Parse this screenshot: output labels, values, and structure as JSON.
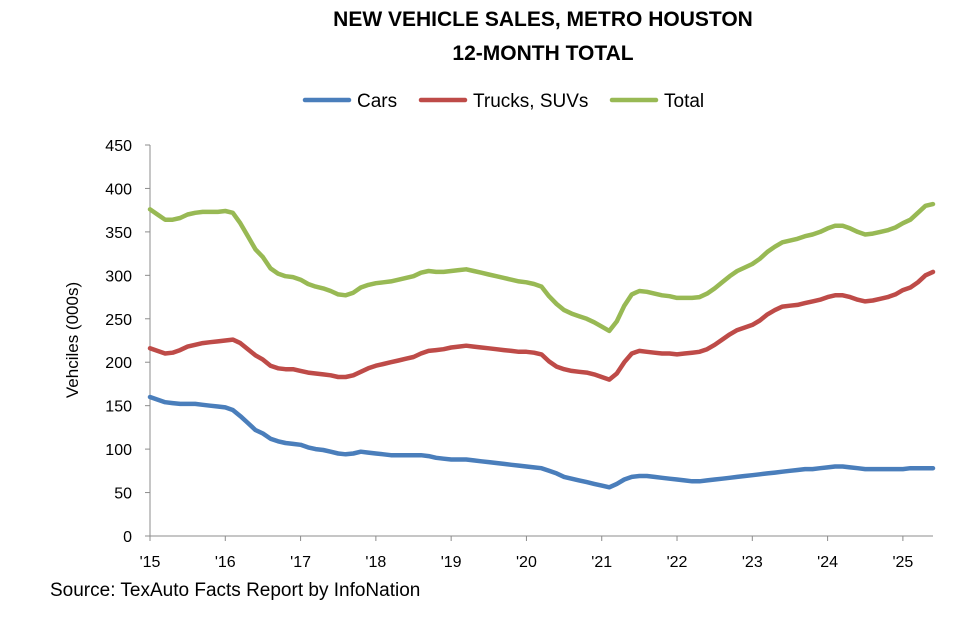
{
  "chart_data": {
    "type": "line",
    "title_lines": [
      "NEW VEHICLE SALES, METRO HOUSTON",
      "12-MONTH TOTAL"
    ],
    "ylabel": "Vehciles (000s)",
    "xlabel": "",
    "ylim": [
      0,
      450
    ],
    "yticks": [
      0,
      50,
      100,
      150,
      200,
      250,
      300,
      350,
      400,
      450
    ],
    "xlim": [
      2015,
      2025.4
    ],
    "xticks": [
      {
        "value": 2015,
        "label": "'15"
      },
      {
        "value": 2016,
        "label": "'16"
      },
      {
        "value": 2017,
        "label": "'17"
      },
      {
        "value": 2018,
        "label": "'18"
      },
      {
        "value": 2019,
        "label": "'19"
      },
      {
        "value": 2020,
        "label": "'20"
      },
      {
        "value": 2021,
        "label": "'21"
      },
      {
        "value": 2022,
        "label": "'22"
      },
      {
        "value": 2023,
        "label": "'23"
      },
      {
        "value": 2024,
        "label": "'24"
      },
      {
        "value": 2025,
        "label": "'25"
      }
    ],
    "gridlines": false,
    "legend_position": "top-center",
    "x": [
      2015.0,
      2015.1,
      2015.2,
      2015.3,
      2015.4,
      2015.5,
      2015.6,
      2015.7,
      2015.8,
      2015.9,
      2016.0,
      2016.1,
      2016.2,
      2016.3,
      2016.4,
      2016.5,
      2016.6,
      2016.7,
      2016.8,
      2016.9,
      2017.0,
      2017.1,
      2017.2,
      2017.3,
      2017.4,
      2017.5,
      2017.6,
      2017.7,
      2017.8,
      2017.9,
      2018.0,
      2018.1,
      2018.2,
      2018.3,
      2018.4,
      2018.5,
      2018.6,
      2018.7,
      2018.8,
      2018.9,
      2019.0,
      2019.1,
      2019.2,
      2019.3,
      2019.4,
      2019.5,
      2019.6,
      2019.7,
      2019.8,
      2019.9,
      2020.0,
      2020.1,
      2020.2,
      2020.3,
      2020.4,
      2020.5,
      2020.6,
      2020.7,
      2020.8,
      2020.9,
      2021.0,
      2021.1,
      2021.2,
      2021.3,
      2021.4,
      2021.5,
      2021.6,
      2021.7,
      2021.8,
      2021.9,
      2022.0,
      2022.1,
      2022.2,
      2022.3,
      2022.4,
      2022.5,
      2022.6,
      2022.7,
      2022.8,
      2022.9,
      2023.0,
      2023.1,
      2023.2,
      2023.3,
      2023.4,
      2023.5,
      2023.6,
      2023.7,
      2023.8,
      2023.9,
      2024.0,
      2024.1,
      2024.2,
      2024.3,
      2024.4,
      2024.5,
      2024.6,
      2024.7,
      2024.8,
      2024.9,
      2025.0,
      2025.1,
      2025.2,
      2025.3,
      2025.4
    ],
    "series": [
      {
        "name": "Cars",
        "color": "#4a7ebb",
        "values": [
          160,
          157,
          154,
          153,
          152,
          152,
          152,
          151,
          150,
          149,
          148,
          145,
          138,
          130,
          122,
          118,
          112,
          109,
          107,
          106,
          105,
          102,
          100,
          99,
          97,
          95,
          94,
          95,
          97,
          96,
          95,
          94,
          93,
          93,
          93,
          93,
          93,
          92,
          90,
          89,
          88,
          88,
          88,
          87,
          86,
          85,
          84,
          83,
          82,
          81,
          80,
          79,
          78,
          75,
          72,
          68,
          66,
          64,
          62,
          60,
          58,
          56,
          60,
          65,
          68,
          69,
          69,
          68,
          67,
          66,
          65,
          64,
          63,
          63,
          64,
          65,
          66,
          67,
          68,
          69,
          70,
          71,
          72,
          73,
          74,
          75,
          76,
          77,
          77,
          78,
          79,
          80,
          80,
          79,
          78,
          77,
          77,
          77,
          77,
          77,
          77,
          78,
          78,
          78,
          78
        ]
      },
      {
        "name": "Trucks, SUVs",
        "color": "#be4b48",
        "values": [
          216,
          213,
          210,
          211,
          214,
          218,
          220,
          222,
          223,
          224,
          225,
          226,
          222,
          215,
          208,
          203,
          196,
          193,
          192,
          192,
          190,
          188,
          187,
          186,
          185,
          183,
          183,
          185,
          189,
          193,
          196,
          198,
          200,
          202,
          204,
          206,
          210,
          213,
          214,
          215,
          217,
          218,
          219,
          218,
          217,
          216,
          215,
          214,
          213,
          212,
          212,
          211,
          209,
          201,
          195,
          192,
          190,
          189,
          188,
          186,
          183,
          180,
          187,
          200,
          210,
          213,
          212,
          211,
          210,
          210,
          209,
          210,
          211,
          212,
          215,
          220,
          226,
          232,
          237,
          240,
          243,
          248,
          255,
          260,
          264,
          265,
          266,
          268,
          270,
          272,
          275,
          277,
          277,
          275,
          272,
          270,
          271,
          273,
          275,
          278,
          283,
          286,
          292,
          300,
          304
        ]
      },
      {
        "name": "Total",
        "color": "#98b954",
        "values": [
          376,
          370,
          364,
          364,
          366,
          370,
          372,
          373,
          373,
          373,
          374,
          372,
          360,
          345,
          330,
          321,
          308,
          302,
          299,
          298,
          295,
          290,
          287,
          285,
          282,
          278,
          277,
          280,
          286,
          289,
          291,
          292,
          293,
          295,
          297,
          299,
          303,
          305,
          304,
          304,
          305,
          306,
          307,
          305,
          303,
          301,
          299,
          297,
          295,
          293,
          292,
          290,
          287,
          276,
          267,
          260,
          256,
          253,
          250,
          246,
          241,
          236,
          247,
          265,
          278,
          282,
          281,
          279,
          277,
          276,
          274,
          274,
          274,
          275,
          279,
          285,
          292,
          299,
          305,
          309,
          313,
          319,
          327,
          333,
          338,
          340,
          342,
          345,
          347,
          350,
          354,
          357,
          357,
          354,
          350,
          347,
          348,
          350,
          352,
          355,
          360,
          364,
          372,
          380,
          382
        ]
      }
    ]
  },
  "footer": {
    "source": "Source: TexAuto Facts Report by InfoNation"
  }
}
